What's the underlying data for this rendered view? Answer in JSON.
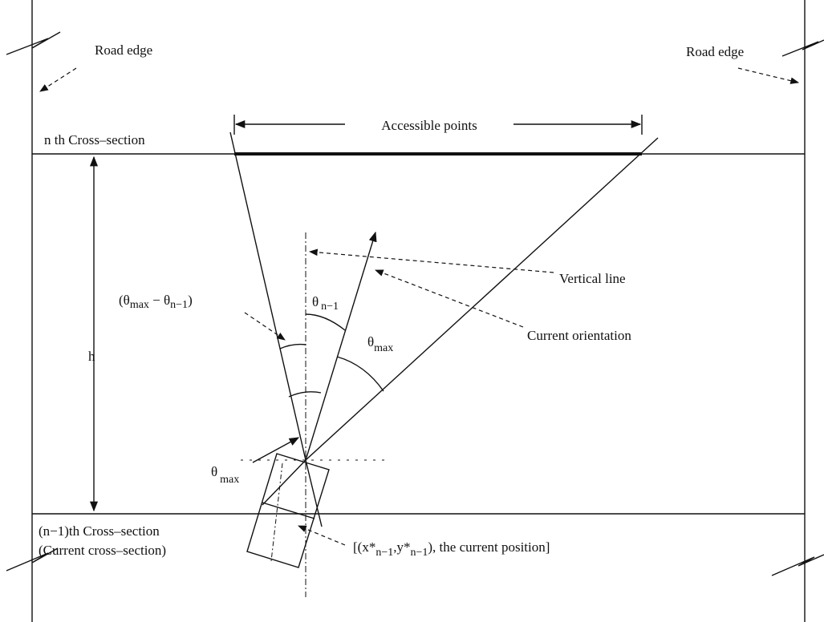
{
  "road_edge_left": "Road edge",
  "road_edge_right": "Road edge",
  "accessible_points": "Accessible points",
  "nth_cross_section": "n th Cross–section",
  "vertical_line": "Vertical line",
  "current_orientation": "Current orientation",
  "h": "h",
  "angle_difference": {
    "open": "(θ",
    "sub1": "max",
    "minus": " − θ",
    "sub2": "n−1",
    "close": ")"
  },
  "theta_n_minus_1": {
    "symbol": "θ",
    "sub": "n−1"
  },
  "theta_max_right": {
    "symbol": "θ",
    "sub": "max"
  },
  "theta_max_left": {
    "symbol": "θ",
    "sub": "max"
  },
  "previous_cross_section": [
    "(n−1)th Cross–section",
    "(Current cross–section)"
  ],
  "current_position": {
    "prefix": "[(x*",
    "sub1": "n−1",
    "mid": ",y*",
    "sub2": "n−1",
    "suffix": "), the current position]"
  }
}
